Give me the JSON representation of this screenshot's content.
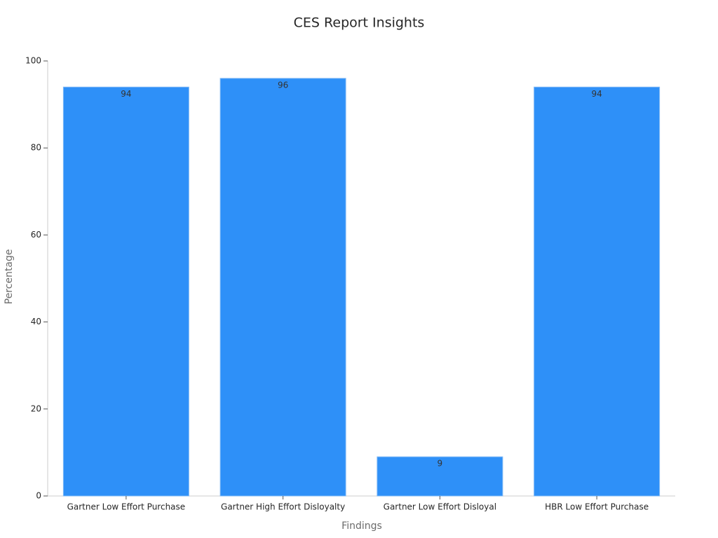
{
  "chart_data": {
    "type": "bar",
    "title": "CES Report Insights",
    "x_label": "Findings",
    "y_label": "Percentage",
    "categories": [
      "Gartner Low Effort Purchase",
      "Gartner High Effort Disloyalty",
      "Gartner Low Effort Disloyal",
      "HBR Low Effort Purchase"
    ],
    "values": [
      94,
      96,
      9,
      94
    ],
    "color": "#2e90f8",
    "ylim": [
      0,
      100
    ],
    "yticks": [
      0,
      20,
      40,
      60,
      80,
      100
    ],
    "grid": false
  }
}
